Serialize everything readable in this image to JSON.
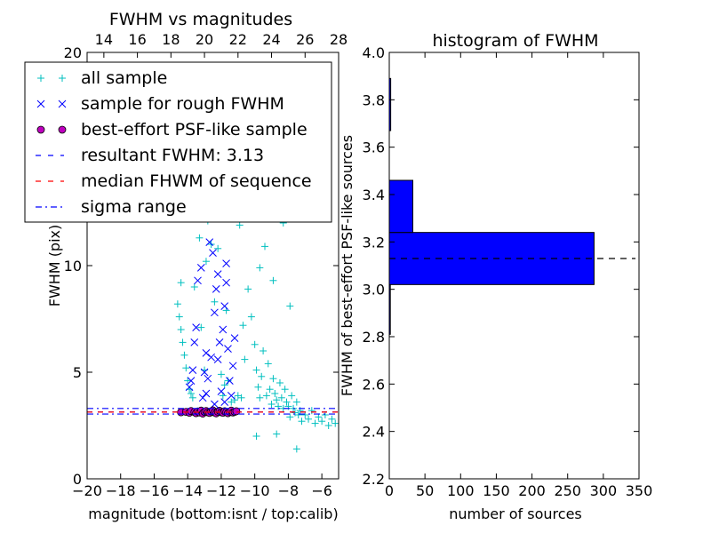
{
  "chart_data": [
    {
      "type": "scatter",
      "title": "FWHM vs magnitudes",
      "xlabel": "magnitude (bottom:isnt / top:calib)",
      "ylabel": "FWHM (pix)",
      "xlim": [
        -20,
        -5
      ],
      "ylim": [
        0,
        20
      ],
      "x_ticks": [
        "−20",
        "−18",
        "−16",
        "−14",
        "−12",
        "−10",
        "−8",
        "−6"
      ],
      "x_tick_values": [
        -20,
        -18,
        -16,
        -14,
        -12,
        -10,
        -8,
        -6
      ],
      "x_top_ticks": [
        "14",
        "16",
        "18",
        "20",
        "22",
        "24",
        "26",
        "28"
      ],
      "x_top_tick_values": [
        14,
        16,
        18,
        20,
        22,
        24,
        26,
        28
      ],
      "x_top_lim": [
        13,
        28
      ],
      "y_ticks": [
        "0",
        "5",
        "10",
        "20"
      ],
      "y_tick_values": [
        0,
        5,
        10,
        20
      ],
      "legend_position": "upper-left",
      "legend": [
        {
          "label": "all sample",
          "marker": "plus",
          "color": "#00bfbf"
        },
        {
          "label": "sample for rough FWHM",
          "marker": "x",
          "color": "#0000ff"
        },
        {
          "label": "best-effort PSF-like sample",
          "marker": "circle",
          "color": "#bf00bf"
        },
        {
          "label": "resultant FWHM: 3.13",
          "marker": "dashed",
          "color": "#0000ff"
        },
        {
          "label": "median FHWM of sequence",
          "marker": "dashed",
          "color": "#ff0000"
        },
        {
          "label": "sigma range",
          "marker": "dashdot",
          "color": "#0000ff"
        }
      ],
      "series": [
        {
          "name": "all sample",
          "marker": "plus",
          "color": "#00bfbf",
          "points": [
            [
              -14.6,
              8.2
            ],
            [
              -14.5,
              7.6
            ],
            [
              -14.4,
              7.0
            ],
            [
              -14.3,
              6.4
            ],
            [
              -14.2,
              5.8
            ],
            [
              -14.1,
              5.2
            ],
            [
              -14.0,
              4.6
            ],
            [
              -13.9,
              4.2
            ],
            [
              -13.8,
              4.0
            ],
            [
              -13.7,
              3.8
            ],
            [
              -14.4,
              9.2
            ],
            [
              -13.6,
              9.0
            ],
            [
              -13.5,
              12.5
            ],
            [
              -13.3,
              11.3
            ],
            [
              -13.2,
              7.1
            ],
            [
              -13.0,
              13.2
            ],
            [
              -13.0,
              5.1
            ],
            [
              -12.8,
              12.1
            ],
            [
              -12.6,
              11.0
            ],
            [
              -12.5,
              13.0
            ],
            [
              -12.4,
              8.3
            ],
            [
              -12.2,
              10.8
            ],
            [
              -12.0,
              4.9
            ],
            [
              -11.9,
              3.9
            ],
            [
              -11.8,
              4.4
            ],
            [
              -11.6,
              4.6
            ],
            [
              -11.4,
              3.6
            ],
            [
              -11.2,
              3.7
            ],
            [
              -11.0,
              3.9
            ],
            [
              -10.8,
              3.8
            ],
            [
              -10.6,
              5.6
            ],
            [
              -10.5,
              12.8
            ],
            [
              -10.4,
              8.9
            ],
            [
              -10.2,
              7.6
            ],
            [
              -10.0,
              6.3
            ],
            [
              -9.9,
              5.1
            ],
            [
              -9.8,
              4.3
            ],
            [
              -9.7,
              3.8
            ],
            [
              -9.6,
              4.8
            ],
            [
              -9.5,
              6.0
            ],
            [
              -9.4,
              10.9
            ],
            [
              -9.3,
              3.9
            ],
            [
              -9.2,
              5.4
            ],
            [
              -9.1,
              4.2
            ],
            [
              -9.0,
              3.5
            ],
            [
              -8.9,
              4.7
            ],
            [
              -8.8,
              4.0
            ],
            [
              -8.7,
              3.7
            ],
            [
              -8.6,
              3.4
            ],
            [
              -8.5,
              4.5
            ],
            [
              -8.4,
              3.8
            ],
            [
              -8.3,
              3.3
            ],
            [
              -8.2,
              4.2
            ],
            [
              -8.1,
              3.6
            ],
            [
              -8.0,
              3.4
            ],
            [
              -7.9,
              2.9
            ],
            [
              -7.8,
              3.9
            ],
            [
              -7.7,
              3.3
            ],
            [
              -7.6,
              3.1
            ],
            [
              -7.5,
              3.6
            ],
            [
              -7.4,
              3.0
            ],
            [
              -7.3,
              3.2
            ],
            [
              -7.2,
              2.7
            ],
            [
              -7.0,
              3.0
            ],
            [
              -6.8,
              2.8
            ],
            [
              -6.6,
              3.2
            ],
            [
              -6.4,
              2.6
            ],
            [
              -6.2,
              2.9
            ],
            [
              -6.0,
              2.7
            ],
            [
              -5.8,
              3.0
            ],
            [
              -5.6,
              2.5
            ],
            [
              -5.4,
              2.8
            ],
            [
              -5.2,
              2.6
            ],
            [
              -7.5,
              1.4
            ],
            [
              -8.7,
              2.1
            ],
            [
              -9.9,
              2.0
            ],
            [
              -9.3,
              13.1
            ],
            [
              -10.9,
              11.9
            ],
            [
              -10.7,
              7.2
            ],
            [
              -11.7,
              7.9
            ],
            [
              -12.9,
              10.2
            ],
            [
              -11.5,
              13.4
            ],
            [
              -8.3,
              12.0
            ],
            [
              -7.9,
              8.1
            ],
            [
              -9.7,
              9.9
            ],
            [
              -8.9,
              9.3
            ]
          ]
        },
        {
          "name": "sample for rough FWHM",
          "marker": "x",
          "color": "#0000ff",
          "points": [
            [
              -13.9,
              4.3
            ],
            [
              -13.8,
              4.6
            ],
            [
              -13.7,
              5.1
            ],
            [
              -13.6,
              6.4
            ],
            [
              -13.5,
              7.1
            ],
            [
              -13.4,
              9.3
            ],
            [
              -13.2,
              9.9
            ],
            [
              -13.0,
              5.0
            ],
            [
              -12.9,
              5.9
            ],
            [
              -12.8,
              4.7
            ],
            [
              -12.7,
              11.1
            ],
            [
              -12.6,
              12.2
            ],
            [
              -12.5,
              10.6
            ],
            [
              -12.4,
              7.8
            ],
            [
              -12.3,
              8.9
            ],
            [
              -12.2,
              5.6
            ],
            [
              -12.1,
              6.4
            ],
            [
              -12.0,
              4.1
            ],
            [
              -11.9,
              7.0
            ],
            [
              -11.8,
              8.1
            ],
            [
              -11.7,
              9.2
            ],
            [
              -11.6,
              6.1
            ],
            [
              -11.5,
              4.6
            ],
            [
              -11.4,
              3.9
            ],
            [
              -11.3,
              5.3
            ],
            [
              -11.2,
              6.6
            ],
            [
              -12.9,
              4.0
            ],
            [
              -13.1,
              3.8
            ],
            [
              -12.4,
              3.5
            ],
            [
              -11.8,
              3.6
            ],
            [
              -12.2,
              9.6
            ],
            [
              -12.6,
              5.7
            ],
            [
              -11.7,
              10.1
            ]
          ]
        },
        {
          "name": "best-effort PSF-like sample",
          "marker": "circle",
          "color": "#bf00bf",
          "points": [
            [
              -14.4,
              3.12
            ],
            [
              -14.1,
              3.14
            ],
            [
              -13.9,
              3.1
            ],
            [
              -13.8,
              3.18
            ],
            [
              -13.6,
              3.13
            ],
            [
              -13.5,
              3.08
            ],
            [
              -13.4,
              3.16
            ],
            [
              -13.3,
              3.11
            ],
            [
              -13.2,
              3.2
            ],
            [
              -13.1,
              3.06
            ],
            [
              -13.0,
              3.14
            ],
            [
              -12.9,
              3.18
            ],
            [
              -12.8,
              3.12
            ],
            [
              -12.7,
              3.09
            ],
            [
              -12.6,
              3.16
            ],
            [
              -12.5,
              3.21
            ],
            [
              -12.4,
              3.11
            ],
            [
              -12.3,
              3.07
            ],
            [
              -12.2,
              3.15
            ],
            [
              -12.1,
              3.19
            ],
            [
              -12.0,
              3.12
            ],
            [
              -11.9,
              3.1
            ],
            [
              -11.8,
              3.17
            ],
            [
              -11.7,
              3.13
            ],
            [
              -11.6,
              3.08
            ],
            [
              -11.5,
              3.15
            ],
            [
              -11.4,
              3.2
            ],
            [
              -11.3,
              3.11
            ],
            [
              -11.2,
              3.14
            ],
            [
              -11.1,
              3.17
            ]
          ]
        }
      ],
      "hlines": [
        {
          "name": "resultant FWHM: 3.13",
          "y": 3.13,
          "style": "dashed",
          "color": "#0000ff"
        },
        {
          "name": "median FHWM of sequence",
          "y": 3.13,
          "style": "dashed",
          "color": "#ff0000"
        },
        {
          "name": "sigma range",
          "y": 3.04,
          "style": "dashdot",
          "color": "#0000ff"
        },
        {
          "name": "sigma range",
          "y": 3.3,
          "style": "dashdot",
          "color": "#0000ff"
        }
      ]
    },
    {
      "type": "bar",
      "orientation": "horizontal",
      "title": "histogram of FWHM",
      "xlabel": "number of sources",
      "ylabel": "FWHM of best-effort PSF-like sources",
      "xlim": [
        0,
        350
      ],
      "ylim": [
        2.2,
        4.0
      ],
      "x_ticks": [
        "0",
        "50",
        "100",
        "150",
        "200",
        "250",
        "300",
        "350"
      ],
      "x_tick_values": [
        0,
        50,
        100,
        150,
        200,
        250,
        300,
        350
      ],
      "y_ticks": [
        "2.2",
        "2.4",
        "2.6",
        "2.8",
        "3.0",
        "3.2",
        "3.4",
        "3.6",
        "3.8",
        "4.0"
      ],
      "y_tick_values": [
        2.2,
        2.4,
        2.6,
        2.8,
        3.0,
        3.2,
        3.4,
        3.6,
        3.8,
        4.0
      ],
      "bar_color": "#0000ff",
      "bins": [
        {
          "from": 2.81,
          "to": 3.02,
          "count": 1
        },
        {
          "from": 3.02,
          "to": 3.24,
          "count": 287
        },
        {
          "from": 3.24,
          "to": 3.46,
          "count": 33
        },
        {
          "from": 3.46,
          "to": 3.67,
          "count": 0
        },
        {
          "from": 3.67,
          "to": 3.89,
          "count": 2
        }
      ],
      "hlines": [
        {
          "y": 3.13,
          "style": "dashed",
          "color": "#000000"
        }
      ]
    }
  ]
}
